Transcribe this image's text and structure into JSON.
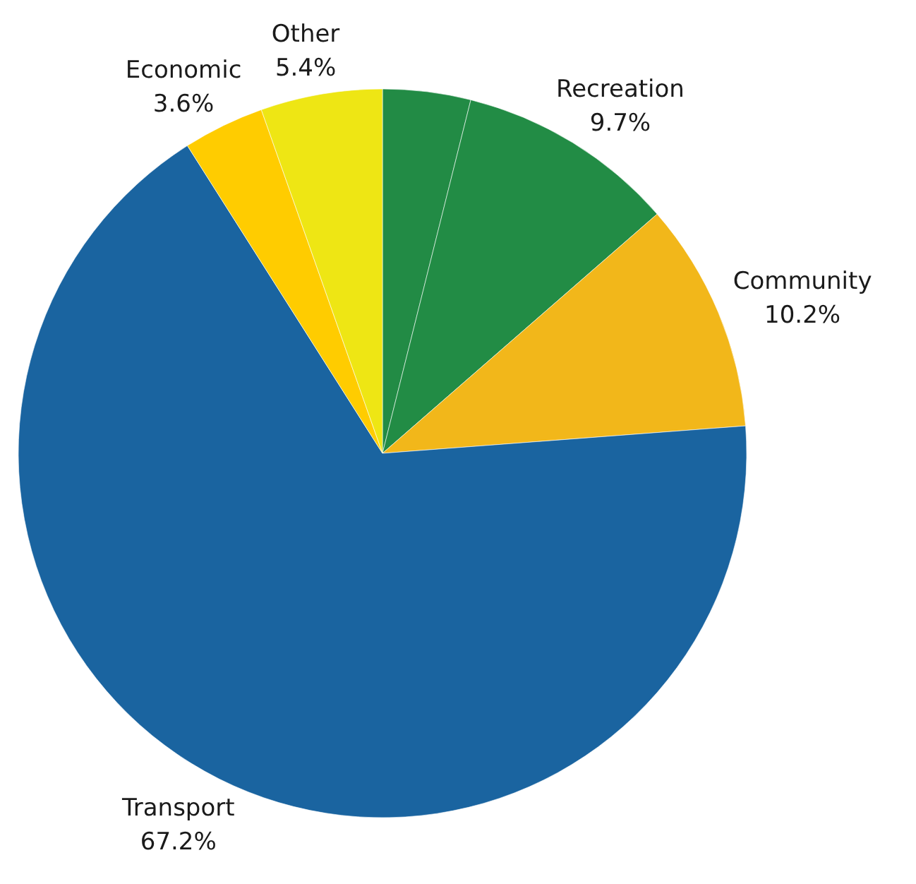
{
  "chart_data": {
    "type": "pie",
    "categories": [
      null,
      "Recreation",
      "Community",
      "Transport",
      "Economic",
      "Other"
    ],
    "values": [
      3.9,
      9.7,
      10.2,
      67.2,
      3.6,
      5.4
    ],
    "colors": [
      "#228b45",
      "#228c45",
      "#f2b71a",
      "#1a64a0",
      "#ffcc00",
      "#eee614"
    ],
    "value_labels": [
      null,
      "9.7%",
      "10.2%",
      "67.2%",
      "3.6%",
      "5.4%"
    ]
  }
}
